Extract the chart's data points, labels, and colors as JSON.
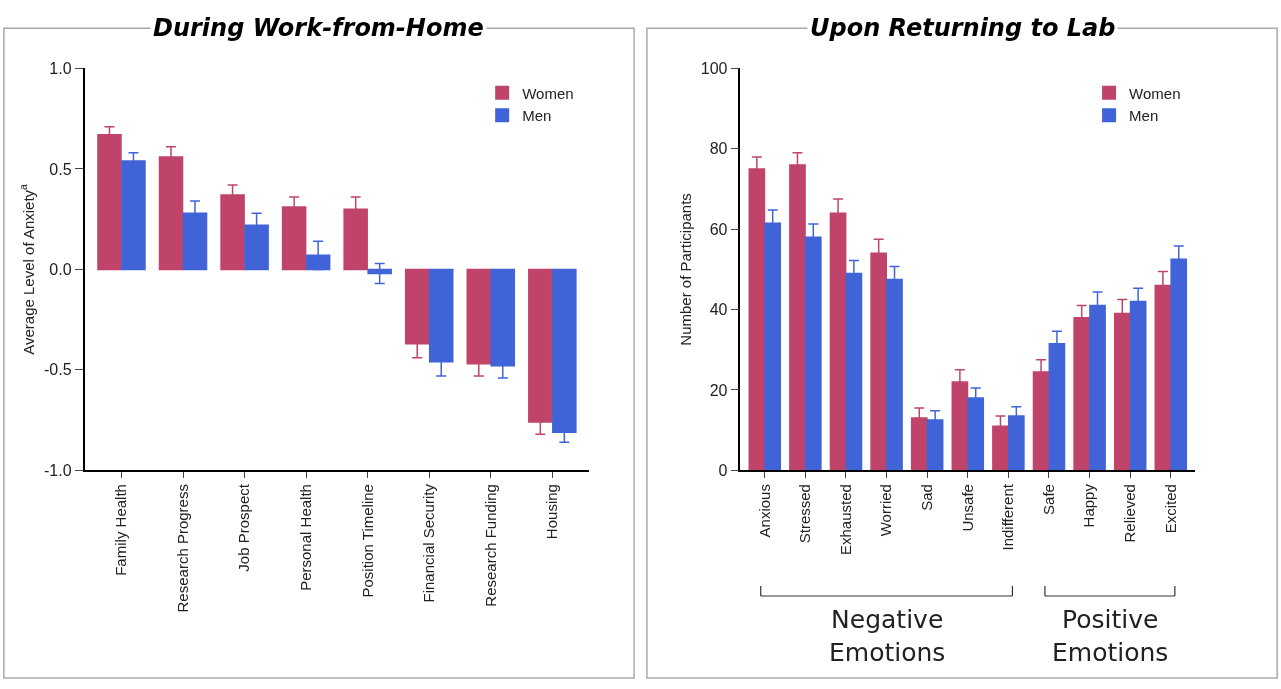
{
  "chart_data": [
    {
      "type": "bar",
      "title": "During Work-from-Home",
      "ylabel": "Average Level of Anxiety$^{a}$",
      "categories": [
        "Family Health",
        "Research Progress",
        "Job Prospect",
        "Personal Health",
        "Position Timeline",
        "Financial Security",
        "Research Funding",
        "Housing"
      ],
      "series": [
        {
          "name": "Women",
          "color": "#c0446a",
          "values": [
            0.67,
            0.56,
            0.37,
            0.31,
            0.3,
            -0.37,
            -0.47,
            -0.76
          ],
          "errors": [
            0.04,
            0.05,
            0.05,
            0.05,
            0.06,
            0.07,
            0.06,
            0.06
          ]
        },
        {
          "name": "Men",
          "color": "#4064d8",
          "values": [
            0.54,
            0.28,
            0.22,
            0.07,
            -0.02,
            -0.46,
            -0.48,
            -0.81
          ],
          "errors": [
            0.04,
            0.06,
            0.06,
            0.07,
            0.05,
            0.07,
            0.06,
            0.05
          ]
        }
      ],
      "ylim": [
        -1,
        1
      ],
      "yticks": [
        {
          "value": -1,
          "label": "-1.0"
        },
        {
          "value": -0.5,
          "label": "-0.5"
        },
        {
          "value": 0,
          "label": "0.0"
        },
        {
          "value": 0.5,
          "label": "0.5"
        },
        {
          "value": 1,
          "label": "1.0"
        }
      ],
      "legend": "top right"
    },
    {
      "type": "bar",
      "title": "Upon Returning to Lab",
      "ylabel": "Number of Participants",
      "categories": [
        "Anxious",
        "Stressed",
        "Exhausted",
        "Worried",
        "Sad",
        "Unsafe",
        "Indifferent",
        "Safe",
        "Happy",
        "Relieved",
        "Excited"
      ],
      "series": [
        {
          "name": "Women",
          "color": "#c0446a",
          "values": [
            75,
            76,
            64,
            54,
            13,
            22,
            11,
            24.5,
            38,
            39,
            46
          ],
          "errors": [
            3,
            3,
            3.5,
            3.5,
            2.5,
            3,
            2.5,
            3,
            3,
            3.5,
            3.5
          ]
        },
        {
          "name": "Men",
          "color": "#4064d8",
          "values": [
            61.5,
            58,
            49,
            47.5,
            12.5,
            18,
            13.5,
            31.5,
            41,
            42,
            52.5
          ],
          "errors": [
            3.3,
            3.3,
            3.2,
            3.2,
            2.3,
            2.5,
            2.3,
            3.1,
            3.4,
            3.3,
            3.3
          ]
        }
      ],
      "ylim": [
        0,
        100
      ],
      "yticks": [
        0,
        20,
        40,
        60,
        80,
        100
      ],
      "annotations": [
        "Negative\nEmotions",
        "Positive\nEmotions"
      ],
      "legend": "top right"
    }
  ]
}
